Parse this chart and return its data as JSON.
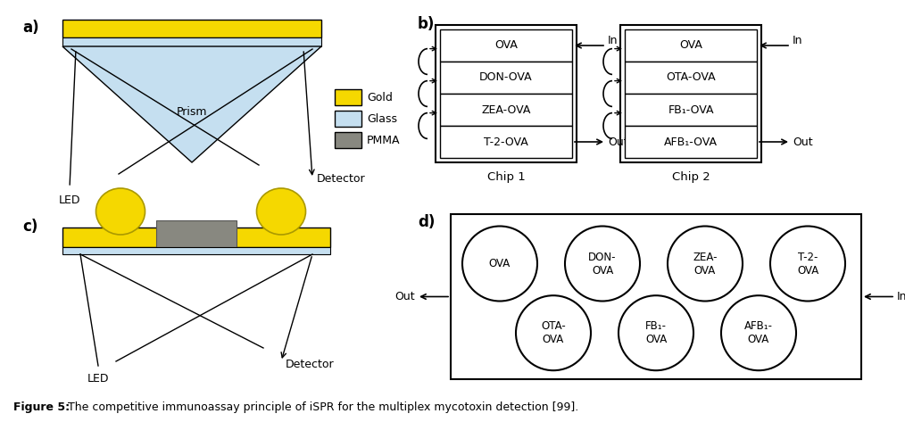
{
  "fig_width": 10.14,
  "fig_height": 4.73,
  "bg_color": "#ffffff",
  "gold_color": "#F5D800",
  "glass_color": "#C5DFF0",
  "pmma_color": "#888880",
  "outline_color": "#000000",
  "chip1_rows": [
    "OVA",
    "DON-OVA",
    "ZEA-OVA",
    "T-2-OVA"
  ],
  "chip2_rows": [
    "OVA",
    "OTA-OVA",
    "FB₁-OVA",
    "AFB₁-OVA"
  ],
  "panel_d_top": [
    "OVA",
    "DON-\nOVA",
    "ZEA-\nOVA",
    "T-2-\nOVA"
  ],
  "panel_d_bot": [
    "OTA-\nOVA",
    "FB₁-\nOVA",
    "AFB₁-\nOVA"
  ],
  "caption_bold": "Figure 5:",
  "caption_rest": " The competitive immunoassay principle of iSPR for the multiplex mycotoxin detection [99]."
}
